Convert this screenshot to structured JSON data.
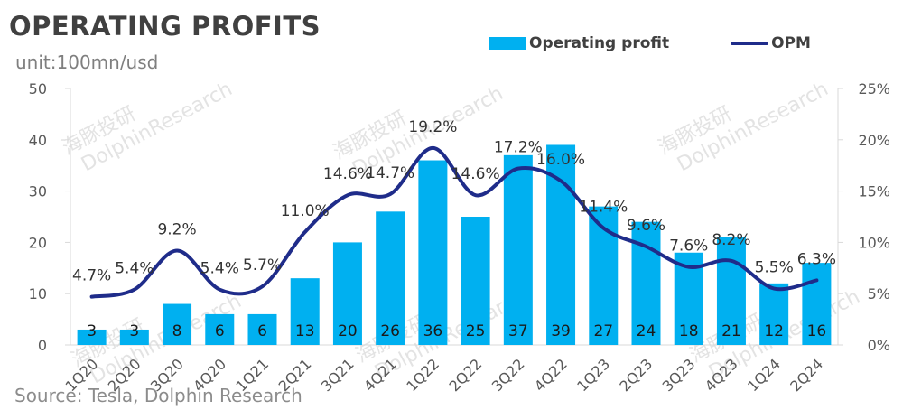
{
  "title": "OPERATING PROFITS",
  "unit": "unit:100mn/usd",
  "source": "Source: Tesla, Dolphin Research",
  "watermark": "DolphinResearch",
  "watermark_cn": "海豚投研",
  "colors": {
    "bar": "#00b0f0",
    "line": "#1f2c8a",
    "axis": "#d9d9d9",
    "text": "#595959"
  },
  "legend": {
    "bar_label": "Operating profit",
    "line_label": "OPM"
  },
  "chart_data": {
    "type": "bar",
    "title": "OPERATING PROFITS",
    "categories": [
      "1Q20",
      "2Q20",
      "3Q20",
      "4Q20",
      "1Q21",
      "2Q21",
      "3Q21",
      "4Q21",
      "1Q22",
      "2Q22",
      "3Q22",
      "4Q22",
      "1Q23",
      "2Q23",
      "3Q23",
      "4Q23",
      "1Q24",
      "2Q24"
    ],
    "series": [
      {
        "name": "Operating profit",
        "type": "bar",
        "axis": "left",
        "values": [
          3,
          3,
          8,
          6,
          6,
          13,
          20,
          26,
          36,
          25,
          37,
          39,
          27,
          24,
          18,
          21,
          12,
          16
        ],
        "labels": [
          "3",
          "3",
          "8",
          "6",
          "6",
          "13",
          "20",
          "26",
          "36",
          "25",
          "37",
          "39",
          "27",
          "24",
          "18",
          "21",
          "12",
          "16"
        ]
      },
      {
        "name": "OPM",
        "type": "line",
        "axis": "right",
        "unit": "%",
        "values": [
          4.7,
          5.4,
          9.2,
          5.4,
          5.7,
          11.0,
          14.6,
          14.7,
          19.2,
          14.6,
          17.2,
          16.0,
          11.4,
          9.6,
          7.6,
          8.2,
          5.5,
          6.3
        ],
        "labels": [
          "4.7%",
          "5.4%",
          "9.2%",
          "5.4%",
          "5.7%",
          "11.0%",
          "14.6%",
          "14.7%",
          "19.2%",
          "14.6%",
          "17.2%",
          "16.0%",
          "11.4%",
          "9.6%",
          "7.6%",
          "8.2%",
          "5.5%",
          "6.3%"
        ]
      }
    ],
    "ylim_left": [
      0,
      50
    ],
    "yticks_left": [
      "0",
      "10",
      "20",
      "30",
      "40",
      "50"
    ],
    "ylim_right": [
      0,
      25
    ],
    "yticks_right": [
      "0%",
      "5%",
      "10%",
      "15%",
      "20%",
      "25%"
    ],
    "xlabel": "",
    "ylabel": "",
    "legend_position": "top-right"
  }
}
